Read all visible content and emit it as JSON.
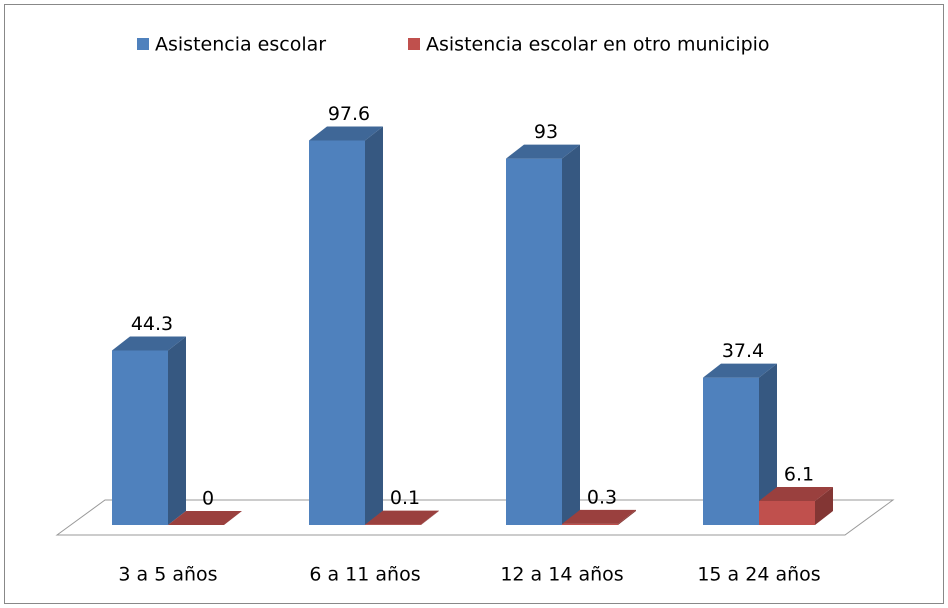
{
  "chart_data": {
    "type": "bar3d",
    "categories": [
      "3 a 5 años",
      "6 a 11 años",
      "12 a 14 años",
      "15 a 24 años"
    ],
    "series": [
      {
        "name": "Asistencia escolar",
        "color": "#4f81bd",
        "values": [
          44.3,
          97.6,
          93,
          37.4
        ]
      },
      {
        "name": "Asistencia escolar en otro municipio",
        "color": "#c0504d",
        "values": [
          0,
          0.1,
          0.3,
          6.1
        ]
      }
    ],
    "ylim": [
      0,
      100
    ],
    "legend": "top"
  }
}
